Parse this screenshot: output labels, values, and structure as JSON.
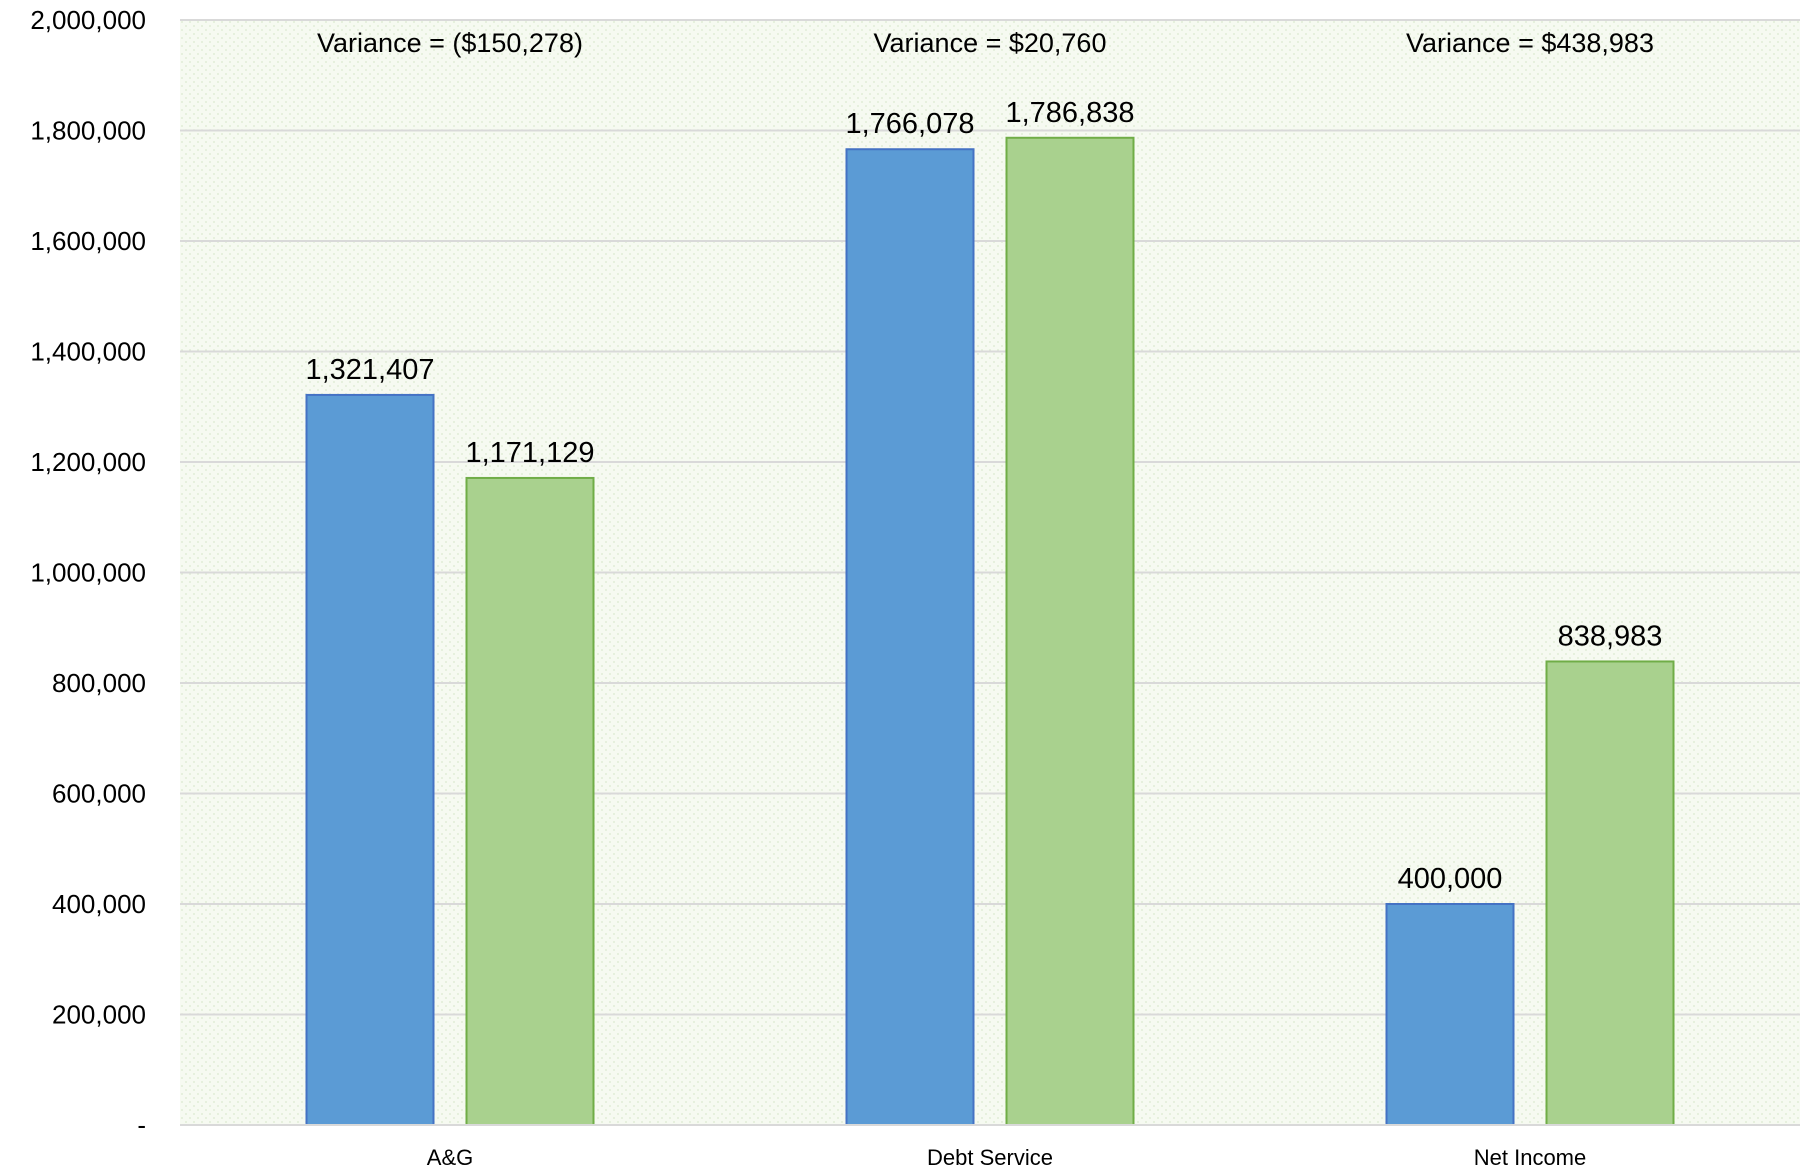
{
  "chart_data": {
    "type": "bar",
    "title": "",
    "xlabel": "",
    "ylabel": "",
    "categories": [
      "A&G",
      "Debt Service",
      "Net Income"
    ],
    "series": [
      {
        "values": [
          1321407,
          1766078,
          400000
        ],
        "color": "#5b9bd5",
        "stroke": "#4472c4"
      },
      {
        "values": [
          1171129,
          1786838,
          838983
        ],
        "color": "#a9d18e",
        "stroke": "#70ad47"
      }
    ],
    "data_labels": [
      [
        "1,321,407",
        "1,766,078",
        "400,000"
      ],
      [
        "1,171,129",
        "1,786,838",
        "838,983"
      ]
    ],
    "annotations": [
      "Variance = ($150,278)",
      "Variance = $20,760",
      "Variance = $438,983"
    ],
    "ylim": [
      0,
      2000000
    ],
    "yticks": [
      0,
      200000,
      400000,
      600000,
      800000,
      1000000,
      1200000,
      1400000,
      1600000,
      1800000,
      2000000
    ],
    "ytick_labels": [
      "-",
      "200,000",
      "400,000",
      "600,000",
      "800,000",
      "1,000,000",
      "1,200,000",
      "1,400,000",
      "1,600,000",
      "1,800,000",
      "2,000,000"
    ],
    "grid": true,
    "legend": "none",
    "plot_background": "#f4f9ee",
    "gridline_color": "#d9d9d9"
  }
}
